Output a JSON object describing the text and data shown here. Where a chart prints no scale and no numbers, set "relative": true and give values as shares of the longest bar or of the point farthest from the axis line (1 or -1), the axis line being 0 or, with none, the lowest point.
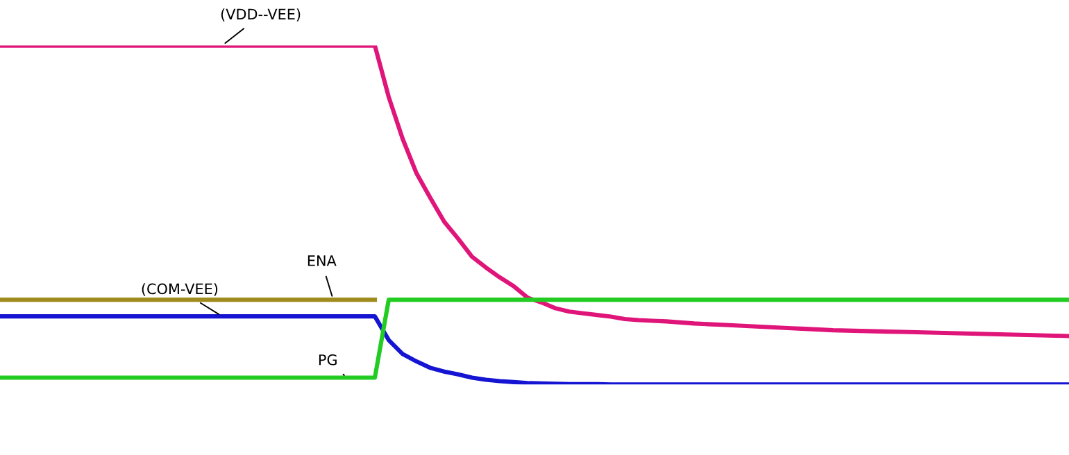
{
  "chart_data": {
    "type": "line",
    "relative": true,
    "legend": false,
    "grid": false,
    "marker": "none",
    "line_style": "solid",
    "categories": [
      null,
      null,
      null,
      null,
      null,
      null,
      null,
      null,
      null,
      null,
      null,
      null,
      null,
      null,
      null,
      null,
      null,
      null,
      null,
      null,
      null,
      null,
      null,
      null,
      null,
      null,
      null,
      null,
      null,
      null,
      null,
      null,
      null,
      null,
      null,
      null,
      null,
      null,
      null,
      null,
      null,
      null,
      null,
      null,
      null,
      null,
      null,
      null,
      null,
      null,
      null,
      null,
      null,
      null,
      null,
      null,
      null,
      null,
      null,
      null,
      null,
      null,
      null,
      null,
      null,
      null,
      null,
      null,
      null,
      null,
      null,
      null,
      null,
      null,
      null,
      null,
      null,
      null
    ],
    "series": [
      {
        "name": "(VDD--VEE)",
        "color": "#e0157a",
        "values": [
          1,
          1,
          1,
          1,
          1,
          1,
          1,
          1,
          1,
          1,
          1,
          1,
          1,
          1,
          1,
          1,
          1,
          1,
          1,
          1,
          1,
          1,
          1,
          1,
          1,
          1,
          1,
          1,
          0.848,
          0.725,
          0.623,
          0.55,
          0.48,
          0.43,
          0.377,
          0.345,
          0.316,
          0.29,
          0.256,
          0.242,
          0.225,
          0.215,
          0.21,
          0.205,
          0.2,
          0.193,
          0.19,
          0.188,
          0.186,
          0.183,
          0.18,
          0.178,
          0.176,
          0.174,
          0.172,
          0.17,
          0.168,
          0.166,
          0.164,
          0.162,
          0.16,
          0.159,
          0.158,
          0.157,
          0.156,
          0.155,
          0.154,
          0.153,
          0.152,
          0.151,
          0.15,
          0.149,
          0.148,
          0.147,
          0.146,
          0.145,
          0.144,
          0.143
        ]
      },
      {
        "name": "ENA",
        "color": "#a08c1e",
        "values": [
          0.25,
          0.25,
          0.25,
          0.25,
          0.25,
          0.25,
          0.25,
          0.25,
          0.25,
          0.25,
          0.25,
          0.25,
          0.25,
          0.25,
          0.25,
          0.25,
          0.25,
          0.25,
          0.25,
          0.25,
          0.25,
          0.25,
          0.25,
          0.25,
          0.25,
          0.25,
          0.25,
          0.25,
          null,
          null,
          null,
          null,
          null,
          null,
          null,
          null,
          null,
          null,
          null,
          null,
          null,
          null,
          null,
          null,
          null,
          null,
          null,
          null,
          null,
          null,
          null,
          null,
          null,
          null,
          null,
          null,
          null,
          null,
          null,
          null,
          null,
          null,
          null,
          null,
          null,
          null,
          null,
          null,
          null,
          null,
          null,
          null,
          null,
          null,
          null,
          null,
          null,
          null
        ]
      },
      {
        "name": "(COM-VEE)",
        "color": "#1414d2",
        "values": [
          0.201,
          0.201,
          0.201,
          0.201,
          0.201,
          0.201,
          0.201,
          0.201,
          0.201,
          0.201,
          0.201,
          0.201,
          0.201,
          0.201,
          0.201,
          0.201,
          0.201,
          0.201,
          0.201,
          0.201,
          0.201,
          0.201,
          0.201,
          0.201,
          0.201,
          0.201,
          0.201,
          0.201,
          0.131,
          0.09,
          0.068,
          0.049,
          0.038,
          0.03,
          0.02,
          0.014,
          0.01,
          0.007,
          0.004,
          0.003,
          0.002,
          0.001,
          0.001,
          0.001,
          0,
          0,
          0,
          0,
          0,
          0,
          0,
          0,
          0,
          0,
          0,
          0,
          0,
          0,
          0,
          0,
          0,
          0,
          0,
          0,
          0,
          0,
          0,
          0,
          0,
          0,
          0,
          0,
          0,
          0,
          0,
          0,
          0,
          0
        ]
      },
      {
        "name": "PG",
        "color": "#22cc22",
        "values": [
          0.02,
          0.02,
          0.02,
          0.02,
          0.02,
          0.02,
          0.02,
          0.02,
          0.02,
          0.02,
          0.02,
          0.02,
          0.02,
          0.02,
          0.02,
          0.02,
          0.02,
          0.02,
          0.02,
          0.02,
          0.02,
          0.02,
          0.02,
          0.02,
          0.02,
          0.02,
          0.02,
          0.02,
          0.25,
          0.25,
          0.25,
          0.25,
          0.25,
          0.25,
          0.25,
          0.25,
          0.25,
          0.25,
          0.25,
          0.25,
          0.25,
          0.25,
          0.25,
          0.25,
          0.25,
          0.25,
          0.25,
          0.25,
          0.25,
          0.25,
          0.25,
          0.25,
          0.25,
          0.25,
          0.25,
          0.25,
          0.25,
          0.25,
          0.25,
          0.25,
          0.25,
          0.25,
          0.25,
          0.25,
          0.25,
          0.25,
          0.25,
          0.25,
          0.25,
          0.25,
          0.25,
          0.25,
          0.25,
          0.25,
          0.25,
          0.25,
          0.25,
          0.25
        ]
      }
    ]
  }
}
